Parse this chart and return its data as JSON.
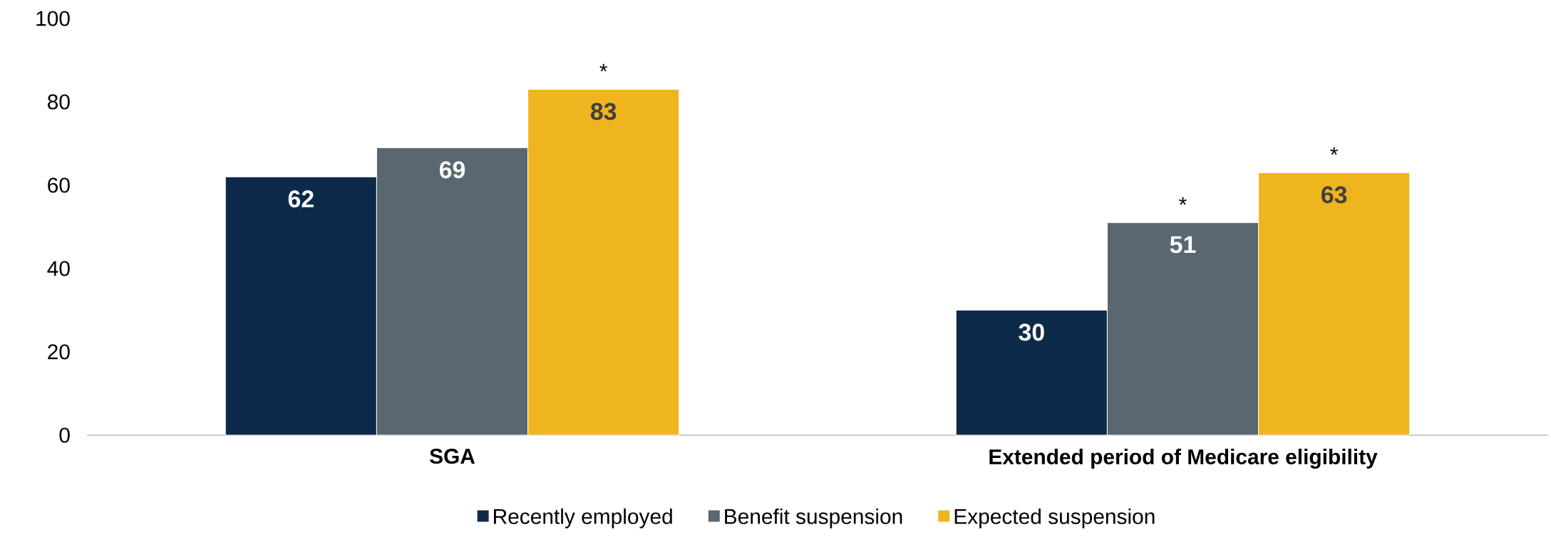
{
  "chart_data": {
    "type": "bar",
    "categories": [
      "SGA",
      "Extended period of Medicare eligibility"
    ],
    "series": [
      {
        "name": "Recently employed",
        "color": "#0d2a4a",
        "values": [
          62,
          30
        ]
      },
      {
        "name": "Benefit suspension",
        "color": "#5b6770",
        "values": [
          69,
          51
        ]
      },
      {
        "name": "Expected suspension",
        "color": "#efb51e",
        "values": [
          83,
          63
        ]
      }
    ],
    "ylim": [
      0,
      100
    ],
    "yticks": [
      0,
      20,
      40,
      60,
      80,
      100
    ],
    "data_labels": true,
    "grid": false,
    "legend": "bottom",
    "annotations": [
      "*",
      "*",
      "*"
    ]
  }
}
